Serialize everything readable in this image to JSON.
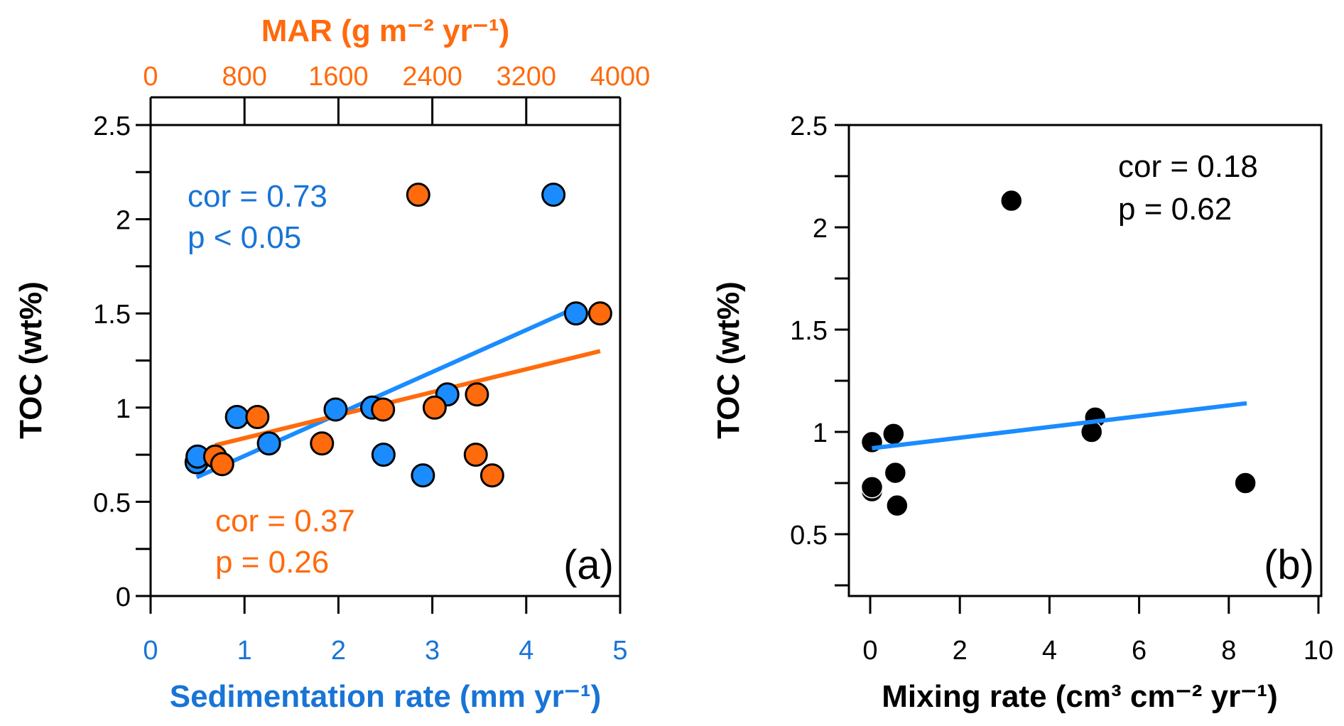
{
  "colors": {
    "blue": "#1a8cff",
    "blue_text": "#1874d6",
    "orange": "#ff6a0d",
    "black": "#000000"
  },
  "chart_data": [
    {
      "type": "scatter",
      "panel_label": "(a)",
      "xlabel": "Sedimentation rate (mm yr⁻¹)",
      "x2label": "MAR (g m⁻² yr⁻¹)",
      "ylabel": "TOC (wt%)",
      "xlim": [
        0,
        5
      ],
      "x2lim": [
        0,
        4000
      ],
      "ylim": [
        0,
        2.5
      ],
      "xticks": [
        "0",
        "1",
        "2",
        "3",
        "4",
        "5"
      ],
      "x2ticks": [
        "0",
        "800",
        "1600",
        "2400",
        "3200",
        "4000"
      ],
      "yticks": [
        "0",
        "0.5",
        "1",
        "1.5",
        "2",
        "2.5"
      ],
      "series": [
        {
          "name": "Sedimentation rate",
          "axis": "bottom",
          "color": "blue",
          "x": [
            0.49,
            0.5,
            0.92,
            1.26,
            1.97,
            2.36,
            2.48,
            2.9,
            3.16,
            4.29,
            4.53
          ],
          "y": [
            0.71,
            0.74,
            0.95,
            0.81,
            0.99,
            1.0,
            0.75,
            0.64,
            1.07,
            2.13,
            1.5
          ],
          "fit": {
            "x": [
              0.49,
              4.53
            ],
            "y": [
              0.63,
              1.53
            ]
          },
          "annotation": [
            "cor = 0.73",
            "p < 0.05"
          ]
        },
        {
          "name": "MAR",
          "axis": "top",
          "color": "orange",
          "x": [
            550,
            610,
            910,
            1460,
            1980,
            2420,
            2770,
            2910,
            2780,
            2280,
            3830
          ],
          "y": [
            0.74,
            0.7,
            0.95,
            0.81,
            0.99,
            1.0,
            0.75,
            0.64,
            1.07,
            2.13,
            1.5
          ],
          "fit": {
            "x": [
              550,
              3830
            ],
            "y": [
              0.8,
              1.3
            ]
          },
          "annotation": [
            "cor = 0.37",
            "p = 0.26"
          ]
        }
      ]
    },
    {
      "type": "scatter",
      "panel_label": "(b)",
      "xlabel": "Mixing rate (cm³ cm⁻² yr⁻¹)",
      "ylabel": "TOC (wt%)",
      "xlim": [
        -0.48,
        10.05
      ],
      "ylim": [
        0.2,
        2.5
      ],
      "xticks": [
        "0",
        "2",
        "4",
        "6",
        "8",
        "10"
      ],
      "yticks": [
        "0.5",
        "1",
        "1.5",
        "2",
        "2.5"
      ],
      "series": [
        {
          "name": "Mixing rate",
          "color": "black",
          "x": [
            0.04,
            0.52,
            0.04,
            0.04,
            0.56,
            0.6,
            3.15,
            5.02,
            4.94,
            8.37
          ],
          "y": [
            0.95,
            0.99,
            0.71,
            0.73,
            0.8,
            0.64,
            2.13,
            1.07,
            1.0,
            0.75
          ],
          "fit": {
            "x": [
              0.04,
              8.4
            ],
            "y": [
              0.92,
              1.14
            ],
            "color": "blue"
          },
          "annotation": [
            "cor = 0.18",
            "p = 0.62"
          ]
        }
      ]
    }
  ]
}
